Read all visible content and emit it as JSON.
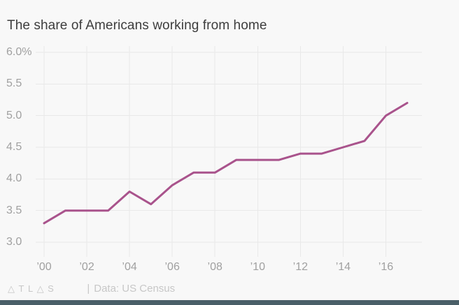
{
  "chart_data": {
    "type": "line",
    "title": "The share of Americans working from home",
    "xlabel": "",
    "ylabel": "",
    "x": [
      2000,
      2001,
      2002,
      2003,
      2004,
      2005,
      2006,
      2007,
      2008,
      2009,
      2010,
      2011,
      2012,
      2013,
      2014,
      2015,
      2016,
      2017
    ],
    "values": [
      3.3,
      3.5,
      3.5,
      3.5,
      3.8,
      3.6,
      3.9,
      4.1,
      4.1,
      4.3,
      4.3,
      4.3,
      4.4,
      4.4,
      4.5,
      4.6,
      5.0,
      5.2
    ],
    "unit": "%",
    "ylim": [
      3.0,
      6.0
    ],
    "grid": "on",
    "legend": "none",
    "yticks": [
      {
        "label": "6.0%",
        "value": 6.0
      },
      {
        "label": "5.5",
        "value": 5.5
      },
      {
        "label": "5.0",
        "value": 5.0
      },
      {
        "label": "4.5",
        "value": 4.5
      },
      {
        "label": "4.0",
        "value": 4.0
      },
      {
        "label": "3.5",
        "value": 3.5
      },
      {
        "label": "3.0",
        "value": 3.0
      }
    ],
    "xticks": [
      {
        "label": "’00",
        "year": 2000
      },
      {
        "label": "’02",
        "year": 2002
      },
      {
        "label": "’04",
        "year": 2004
      },
      {
        "label": "’06",
        "year": 2006
      },
      {
        "label": "’08",
        "year": 2008
      },
      {
        "label": "’10",
        "year": 2010
      },
      {
        "label": "’12",
        "year": 2012
      },
      {
        "label": "’14",
        "year": 2014
      },
      {
        "label": "’16",
        "year": 2016
      }
    ]
  },
  "footer": {
    "logo": "△TL△S",
    "divider": "|",
    "source": "Data: US Census"
  },
  "colors": {
    "background": "#f8f8f8",
    "grid": "#e9e9e9",
    "tick": "#a0a0a0",
    "title": "#3d3d3d",
    "line": "#a9538c",
    "footer": "#c7c7c7",
    "bottom_bar": "#4a5f68"
  }
}
